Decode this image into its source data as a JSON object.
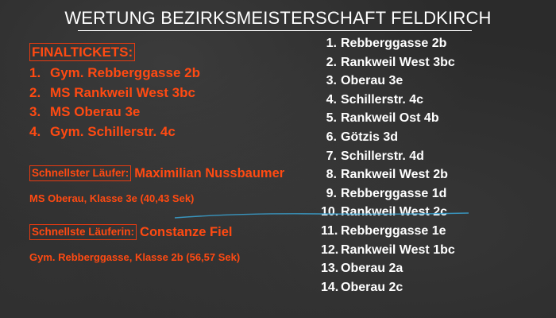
{
  "title": "WERTUNG BEZIRKSMEISTERSCHAFT FELDKIRCH",
  "finals": {
    "heading": "FINALTICKETS:",
    "items": [
      {
        "num": "1.",
        "name": "Gym. Rebberggasse 2b"
      },
      {
        "num": "2.",
        "name": "MS Rankweil West 3bc"
      },
      {
        "num": "3.",
        "name": "MS Oberau 3e"
      },
      {
        "num": "4.",
        "name": "Gym. Schillerstr. 4c"
      }
    ]
  },
  "fastest_male": {
    "label": "Schnellster Läufer:",
    "name": "Maximilian Nussbaumer",
    "detail": "MS Oberau, Klasse 3e (40,43 Sek)"
  },
  "fastest_female": {
    "label": "Schnellste Läuferin:",
    "name": "Constanze Fiel",
    "detail": "Gym. Rebberggasse, Klasse 2b (56,57 Sek)"
  },
  "ranking": [
    {
      "num": "1.",
      "name": "Rebberggasse 2b"
    },
    {
      "num": "2.",
      "name": "Rankweil West 3bc"
    },
    {
      "num": "3.",
      "name": "Oberau 3e"
    },
    {
      "num": "4.",
      "name": "Schillerstr. 4c"
    },
    {
      "num": "5.",
      "name": "Rankweil Ost 4b"
    },
    {
      "num": "6.",
      "name": "Götzis 3d"
    },
    {
      "num": "7.",
      "name": "Schillerstr. 4d"
    },
    {
      "num": "8.",
      "name": "Rankweil West 2b"
    },
    {
      "num": "9.",
      "name": "Rebberggasse 1d"
    },
    {
      "num": "10.",
      "name": "Rankweil West 2c"
    },
    {
      "num": "11.",
      "name": "Rebberggasse 1e"
    },
    {
      "num": "12.",
      "name": "Rankweil West 1bc"
    },
    {
      "num": "13.",
      "name": "Oberau 2a"
    },
    {
      "num": "14.",
      "name": "Oberau 2c"
    }
  ],
  "colors": {
    "background": "#2b2b2b",
    "accent": "#ff4a12",
    "text": "#ffffff",
    "chalk_line": "#3aa6d6"
  }
}
